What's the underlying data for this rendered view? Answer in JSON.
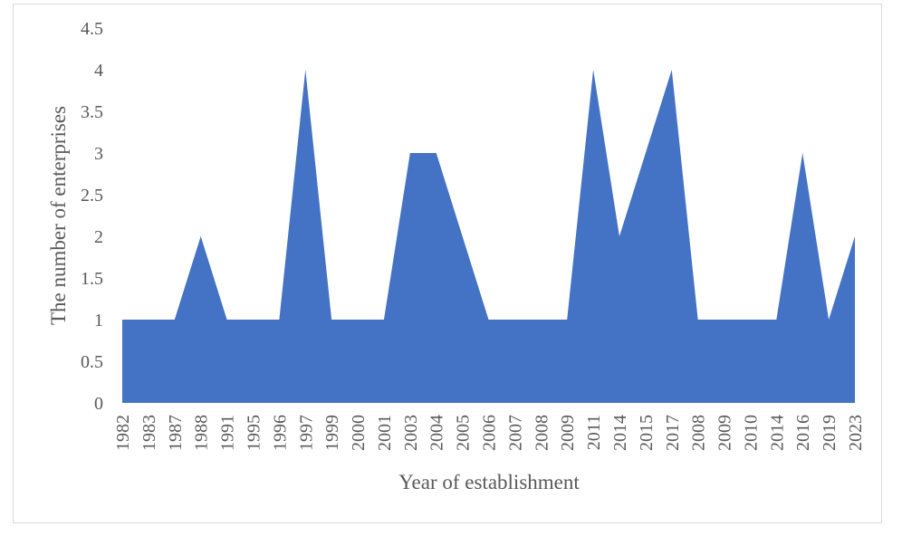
{
  "chart_data": {
    "type": "area",
    "title": "",
    "xlabel": "Year of establishment",
    "ylabel": "The number of enterprises",
    "categories": [
      "1982",
      "1983",
      "1987",
      "1988",
      "1991",
      "1995",
      "1996",
      "1997",
      "1999",
      "2000",
      "2001",
      "2003",
      "2004",
      "2005",
      "2006",
      "2007",
      "2008",
      "2009",
      "2011",
      "2014",
      "2015",
      "2017",
      "2008",
      "2009",
      "2010",
      "2014",
      "2016",
      "2019",
      "2023"
    ],
    "values": [
      1,
      1,
      1,
      2,
      1,
      1,
      1,
      4,
      1,
      1,
      1,
      3,
      3,
      2,
      1,
      1,
      1,
      1,
      4,
      2,
      3,
      4,
      1,
      1,
      1,
      1,
      3,
      1,
      2
    ],
    "ylim": [
      0,
      4.5
    ],
    "yticks": [
      "0",
      "0.5",
      "1",
      "1.5",
      "2",
      "2.5",
      "3",
      "3.5",
      "4",
      "4.5"
    ],
    "grid": false,
    "color": "#4472c4"
  }
}
